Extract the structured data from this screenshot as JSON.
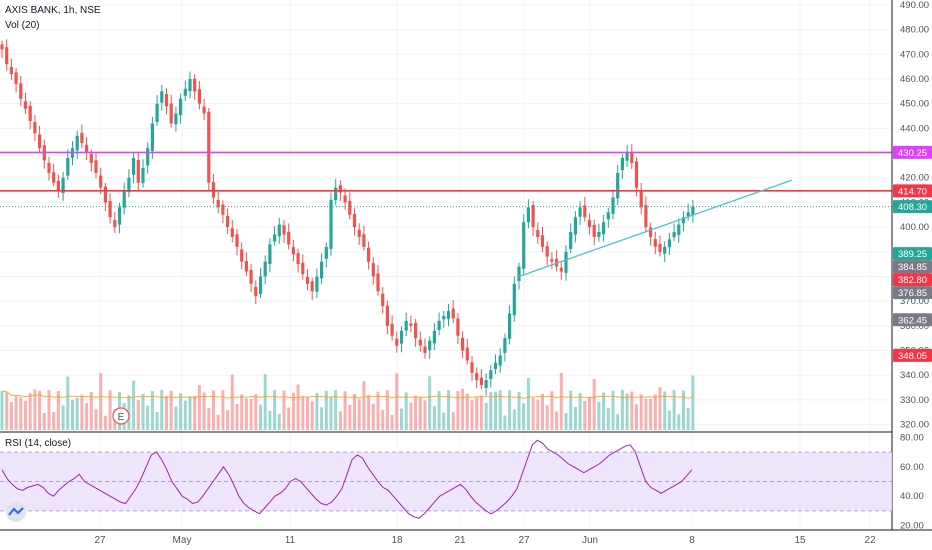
{
  "header": {
    "symbol_line": "AXIS BANK, 1h, NSE",
    "volume_line": "Vol (20)",
    "rsi_line": "RSI (14, close)"
  },
  "colors": {
    "up": "#26a69a",
    "down": "#ef5350",
    "resistance_magenta": "#e040fb",
    "resistance_red": "#f23645",
    "trendline": "#4fc3c7",
    "last_price": "#26a69a",
    "rsi_line": "#9c27b0",
    "rsi_band": "#ece0fb"
  },
  "chart_data": [
    {
      "type": "candlestick",
      "title": "AXIS BANK, 1h, NSE",
      "ylim": [
        317,
        492
      ],
      "y_ticks": [
        320,
        330,
        340,
        350,
        360,
        370,
        380,
        390,
        400,
        410,
        420,
        430,
        440,
        450,
        460,
        470,
        480,
        490
      ],
      "x_ticks": [
        "27",
        "May",
        "11",
        "18",
        "21",
        "27",
        "Jun",
        "8",
        "15",
        "22"
      ],
      "series_close": [
        472,
        466,
        462,
        458,
        452,
        448,
        443,
        438,
        432,
        427,
        422,
        418,
        415,
        420,
        428,
        432,
        437,
        434,
        430,
        426,
        422,
        416,
        410,
        404,
        400,
        408,
        415,
        420,
        428,
        418,
        424,
        432,
        442,
        450,
        455,
        449,
        442,
        446,
        452,
        456,
        460,
        455,
        450,
        446,
        418,
        412,
        408,
        405,
        400,
        396,
        392,
        386,
        382,
        377,
        372,
        380,
        386,
        393,
        397,
        401,
        397,
        393,
        389,
        385,
        381,
        377,
        374,
        380,
        386,
        392,
        411,
        416,
        414,
        410,
        405,
        400,
        396,
        392,
        386,
        380,
        374,
        368,
        360,
        356,
        352,
        358,
        362,
        360,
        355,
        352,
        349,
        354,
        358,
        362,
        364,
        366,
        363,
        356,
        350,
        346,
        341,
        338,
        336,
        338,
        342,
        345,
        348,
        355,
        365,
        377,
        384,
        402,
        408,
        400,
        396,
        392,
        388,
        386,
        384,
        382,
        390,
        398,
        404,
        408,
        404,
        400,
        396,
        398,
        402,
        406,
        412,
        422,
        428,
        430,
        426,
        416,
        408,
        400,
        396,
        392,
        390,
        392,
        395,
        398,
        401,
        404,
        406,
        408.3
      ],
      "price_tags": [
        {
          "label": "430.25",
          "value": 430.25,
          "color": "#e040fb"
        },
        {
          "label": "414.70",
          "value": 414.7,
          "color": "#f23645"
        },
        {
          "label": "408.30",
          "value": 408.3,
          "color": "#26a69a"
        },
        {
          "label": "389.25",
          "value": 389.25,
          "color": "#26a69a"
        },
        {
          "label": "384.85",
          "value": 384.85,
          "color": "#787b86"
        },
        {
          "label": "382.80",
          "value": 382.8,
          "color": "#f23645"
        },
        {
          "label": "376.85",
          "value": 376.85,
          "color": "#787b86"
        },
        {
          "label": "362.45",
          "value": 362.45,
          "color": "#787b86"
        },
        {
          "label": "348.05",
          "value": 348.05,
          "color": "#f23645"
        }
      ],
      "horizontal_lines": [
        {
          "value": 430.25,
          "color": "#e040fb",
          "style": "solid"
        },
        {
          "value": 414.7,
          "color": "#f23645",
          "style": "solid"
        },
        {
          "value": 408.3,
          "color": "#26a69a",
          "style": "dotted"
        }
      ],
      "trendline": {
        "from": {
          "bar": 110,
          "value": 380
        },
        "to": {
          "bar": 168,
          "value": 419
        }
      },
      "grid": true
    },
    {
      "type": "bar",
      "title": "Vol (20)",
      "note": "volume histogram overlaid at the bottom of the price pane with a 20-period moving average line"
    },
    {
      "type": "line",
      "title": "RSI (14, close)",
      "ylim": [
        17,
        83
      ],
      "y_ticks": [
        20,
        40,
        60,
        80
      ],
      "band": [
        30,
        70
      ],
      "values": [
        58,
        52,
        48,
        45,
        44,
        46,
        47,
        48,
        46,
        42,
        40,
        44,
        47,
        50,
        52,
        55,
        50,
        48,
        46,
        44,
        42,
        40,
        38,
        36,
        35,
        40,
        45,
        52,
        60,
        68,
        70,
        65,
        58,
        50,
        45,
        40,
        38,
        35,
        36,
        40,
        45,
        50,
        55,
        60,
        55,
        48,
        40,
        35,
        32,
        30,
        28,
        32,
        36,
        40,
        42,
        45,
        50,
        52,
        50,
        46,
        42,
        38,
        35,
        34,
        36,
        40,
        45,
        55,
        65,
        68,
        66,
        60,
        55,
        50,
        46,
        44,
        40,
        36,
        32,
        28,
        26,
        25,
        28,
        32,
        36,
        40,
        42,
        44,
        46,
        48,
        45,
        40,
        36,
        33,
        30,
        28,
        30,
        33,
        36,
        40,
        45,
        55,
        65,
        75,
        78,
        76,
        72,
        70,
        68,
        65,
        62,
        60,
        58,
        56,
        58,
        60,
        62,
        65,
        68,
        70,
        72,
        74,
        75,
        70,
        60,
        50,
        46,
        44,
        42,
        44,
        46,
        48,
        50,
        54,
        58
      ]
    }
  ]
}
